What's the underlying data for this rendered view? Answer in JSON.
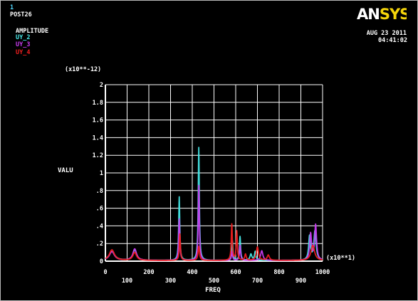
{
  "header": {
    "window_number": "1",
    "post_label": "POST26",
    "amplitude_label": "AMPLITUDE",
    "date": "AUG 23 2011",
    "time": "04:41:02"
  },
  "logo": {
    "text_prefix": "AN",
    "text_suffix": "SYS",
    "prefix_color": "#ffffff",
    "suffix_color": "#f5d50a"
  },
  "colors": {
    "background": "#000000",
    "grid": "#ffffff",
    "text": "#ffffff",
    "header_number": "#52d8ff"
  },
  "chart_data": {
    "type": "line",
    "xlabel": "FREQ",
    "ylabel": "VALU",
    "x_multiplier": "(x10**1)",
    "y_multiplier": "(x10**-12)",
    "xlim": [
      0,
      1000
    ],
    "ylim": [
      0,
      2
    ],
    "grid": true,
    "legend_position": "top-left",
    "x_ticks": [
      "0",
      "100",
      "200",
      "300",
      "400",
      "500",
      "600",
      "700",
      "800",
      "900",
      "1000"
    ],
    "y_ticks": [
      "0",
      ".2",
      ".4",
      ".6",
      ".8",
      "1",
      "1.2",
      "1.4",
      "1.6",
      "1.8",
      "2"
    ],
    "series": [
      {
        "name": "UY_2",
        "color": "#46e6e6",
        "peaks": [
          [
            30,
            0.1,
            16
          ],
          [
            135,
            0.12,
            10
          ],
          [
            340,
            0.72,
            3
          ],
          [
            430,
            1.28,
            3
          ],
          [
            585,
            0.22,
            3
          ],
          [
            620,
            0.27,
            3
          ],
          [
            670,
            0.07,
            5
          ],
          [
            690,
            0.1,
            4
          ],
          [
            940,
            0.27,
            5
          ],
          [
            965,
            0.33,
            6
          ]
        ]
      },
      {
        "name": "UY_3",
        "color": "#c83cf0",
        "peaks": [
          [
            30,
            0.1,
            14
          ],
          [
            135,
            0.13,
            10
          ],
          [
            340,
            0.47,
            3
          ],
          [
            430,
            0.85,
            3
          ],
          [
            583,
            0.1,
            3
          ],
          [
            620,
            0.17,
            3
          ],
          [
            720,
            0.11,
            6
          ],
          [
            945,
            0.3,
            5
          ],
          [
            968,
            0.4,
            5
          ]
        ]
      },
      {
        "name": "UY_4",
        "color": "#f01e1e",
        "peaks": [
          [
            30,
            0.12,
            14
          ],
          [
            135,
            0.09,
            10
          ],
          [
            343,
            0.3,
            3
          ],
          [
            430,
            0.16,
            4
          ],
          [
            582,
            0.41,
            3
          ],
          [
            605,
            0.33,
            3
          ],
          [
            645,
            0.07,
            4
          ],
          [
            700,
            0.15,
            6
          ],
          [
            750,
            0.06,
            6
          ],
          [
            955,
            0.17,
            10
          ]
        ]
      }
    ]
  }
}
